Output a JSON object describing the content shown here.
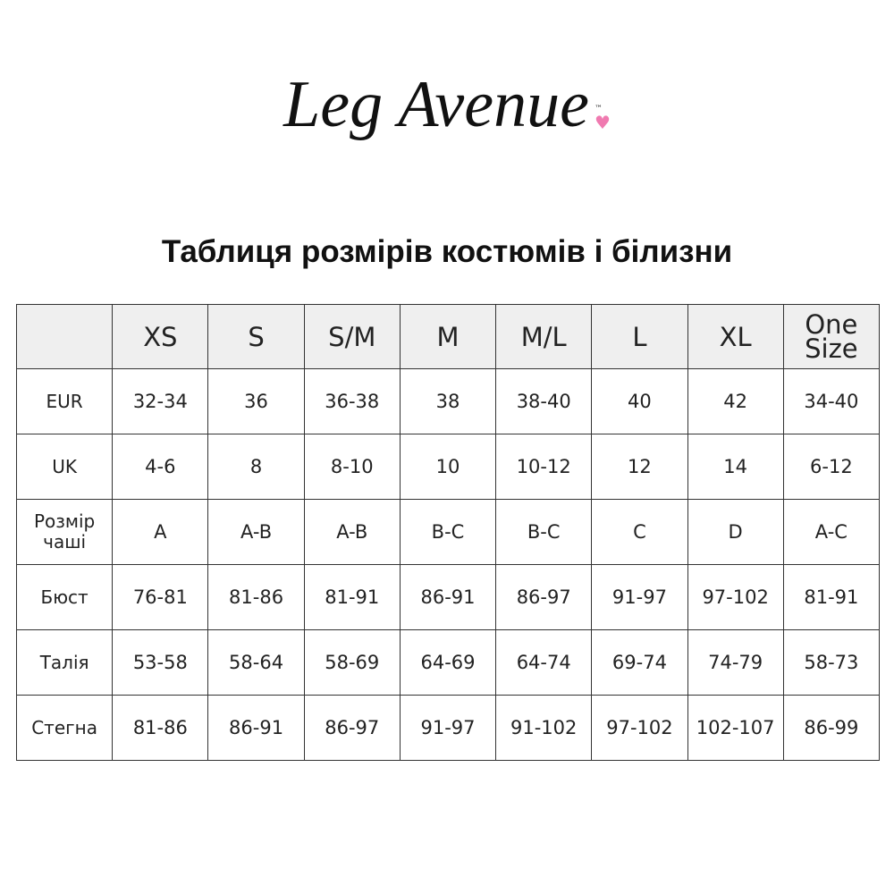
{
  "logo": {
    "text": "Leg Avenue",
    "trademark": "™",
    "accent_color": "#f07ab0"
  },
  "title": "Таблиця розмірів костюмів і білизни",
  "table": {
    "header_bg": "#efefef",
    "columns": [
      "",
      "XS",
      "S",
      "S/M",
      "M",
      "M/L",
      "L",
      "XL",
      "One Size"
    ],
    "rows": [
      {
        "label": "EUR",
        "values": [
          "32-34",
          "36",
          "36-38",
          "38",
          "38-40",
          "40",
          "42",
          "34-40"
        ]
      },
      {
        "label": "UK",
        "values": [
          "4-6",
          "8",
          "8-10",
          "10",
          "10-12",
          "12",
          "14",
          "6-12"
        ]
      },
      {
        "label": "Розмір чаші",
        "values": [
          "A",
          "A-B",
          "A-B",
          "B-C",
          "B-C",
          "C",
          "D",
          "A-C"
        ]
      },
      {
        "label": "Бюст",
        "values": [
          "76-81",
          "81-86",
          "81-91",
          "86-91",
          "86-97",
          "91-97",
          "97-102",
          "81-91"
        ]
      },
      {
        "label": "Талія",
        "values": [
          "53-58",
          "58-64",
          "58-69",
          "64-69",
          "64-74",
          "69-74",
          "74-79",
          "58-73"
        ]
      },
      {
        "label": "Стегна",
        "values": [
          "81-86",
          "86-91",
          "86-97",
          "91-97",
          "91-102",
          "97-102",
          "102-107",
          "86-99"
        ]
      }
    ]
  }
}
